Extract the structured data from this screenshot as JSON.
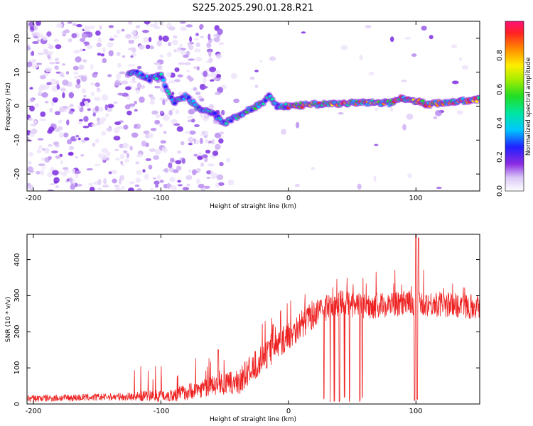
{
  "title": "S225.2025.290.01.28.R21",
  "colors": {
    "snr_line": "#ee2222",
    "background": "#ffffff",
    "axis": "#000000"
  },
  "chart_data": [
    {
      "type": "heatmap",
      "xlabel": "Height of straight line (km)",
      "ylabel": "Frequency (Hz)",
      "xlim": [
        -205,
        150
      ],
      "ylim": [
        -25,
        25
      ],
      "xticks": [
        -200,
        -100,
        0,
        100
      ],
      "yticks": [
        -20,
        -10,
        0,
        10,
        20
      ],
      "ridge": {
        "x": [
          -120,
          -110,
          -100,
          -90,
          -80,
          -70,
          -60,
          -50,
          -40,
          -30,
          -20,
          -15,
          -10,
          -5,
          0,
          20,
          40,
          60,
          80,
          90,
          100,
          110,
          120,
          150
        ],
        "freq": [
          10,
          8,
          9,
          1,
          3,
          -1,
          -2,
          -5,
          -3,
          -1,
          1,
          3,
          0,
          0,
          0,
          0.5,
          0.8,
          1,
          1,
          2.5,
          1.5,
          0.5,
          1,
          2
        ]
      },
      "colorbar": {
        "label": "Normalized spectral amplitude",
        "range": [
          0,
          1
        ],
        "ticks": [
          "0.0",
          "0.2",
          "0.4",
          "0.6",
          "0.8"
        ]
      }
    },
    {
      "type": "line",
      "xlabel": "Height of straight line (km)",
      "ylabel": "SNR (10 * v/v)",
      "xlim": [
        -205,
        150
      ],
      "ylim": [
        0,
        470
      ],
      "xticks": [
        -200,
        -100,
        0,
        100
      ],
      "yticks": [
        0,
        100,
        200,
        300,
        400
      ],
      "trend": {
        "x": [
          -205,
          -130,
          -90,
          -60,
          -40,
          -25,
          0,
          20,
          40,
          60,
          100,
          150
        ],
        "y": [
          15,
          20,
          25,
          50,
          60,
          110,
          190,
          250,
          280,
          270,
          280,
          270
        ]
      },
      "spikes_high": [
        [
          -55,
          150
        ],
        [
          -12,
          220
        ],
        [
          30,
          300
        ],
        [
          100,
          470
        ],
        [
          102,
          460
        ]
      ],
      "dropouts_x": [
        28,
        30,
        33,
        36,
        40,
        44,
        48,
        52,
        56,
        58,
        99,
        101
      ]
    }
  ],
  "bottom": {
    "xlabel": "Height of straight line (km)",
    "ylabel": "SNR (10 * v/v)",
    "tick_labels_x": [
      "-200",
      "-100",
      "0",
      "100"
    ],
    "tick_labels_y": [
      "0",
      "100",
      "200",
      "300",
      "400"
    ]
  },
  "top": {
    "xlabel": "Height of straight line (km)",
    "ylabel": "Frequency (Hz)",
    "tick_labels_x": [
      "-200",
      "-100",
      "0",
      "100"
    ],
    "tick_labels_y": [
      "-20",
      "-10",
      "0",
      "10",
      "20"
    ],
    "colorbar_label": "Normalized spectral amplitude",
    "colorbar_ticks": [
      "0.0",
      "0.2",
      "0.4",
      "0.6",
      "0.8"
    ]
  }
}
